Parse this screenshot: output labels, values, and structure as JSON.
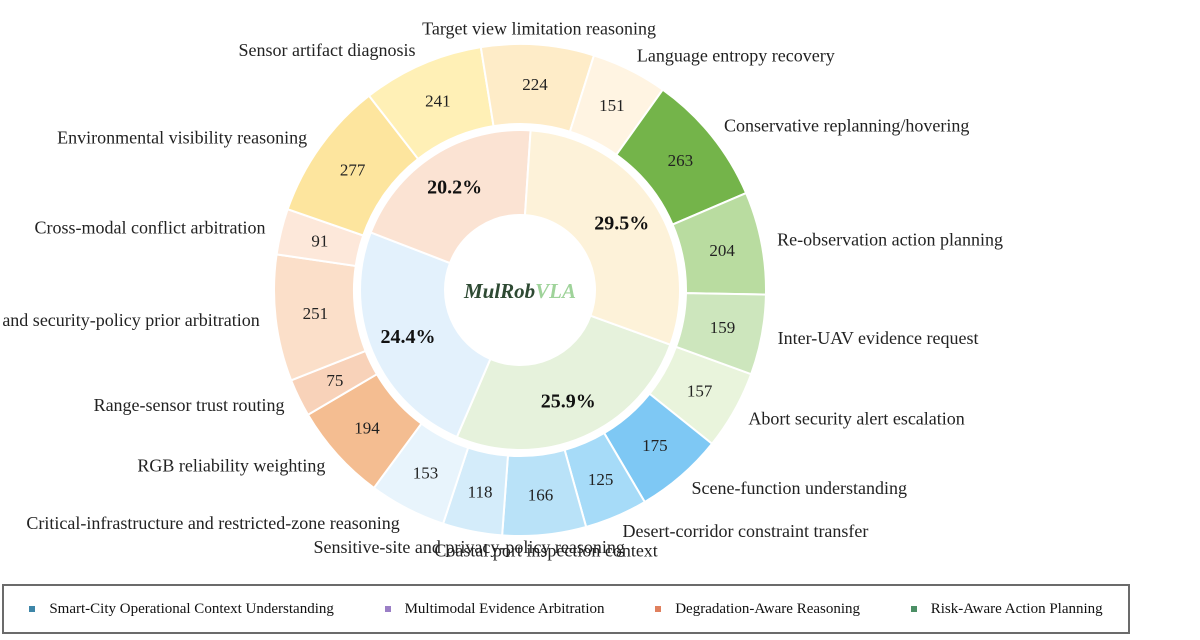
{
  "chart_data": {
    "type": "pie",
    "center_label": {
      "main": "MulRob",
      "accent": "VLA"
    },
    "inner_ring": [
      {
        "label": "25.9%",
        "value": 25.9,
        "color": "#e6f2dc"
      },
      {
        "label": "24.4%",
        "value": 24.4,
        "color": "#e3f1fc"
      },
      {
        "label": "20.2%",
        "value": 20.2,
        "color": "#fbe3d3"
      },
      {
        "label": "29.5%",
        "value": 29.5,
        "color": "#fdf2d9"
      }
    ],
    "outer_ring": [
      {
        "name": "Abort security alert escalation",
        "value": 157,
        "color": "#e9f4dc"
      },
      {
        "name": "Scene-function understanding",
        "value": 175,
        "color": "#7ec8f4"
      },
      {
        "name": "Desert-corridor constraint transfer",
        "value": 125,
        "color": "#a6dbf8"
      },
      {
        "name": "Coastal port inspection context",
        "value": 166,
        "color": "#b9e2f8"
      },
      {
        "name": "Sensitive-site and privacy-policy reasoning",
        "value": 118,
        "color": "#d4ecfa"
      },
      {
        "name": "Critical-infrastructure and restricted-zone reasoning",
        "value": 153,
        "color": "#e8f4fc"
      },
      {
        "name": "RGB reliability weighting",
        "value": 194,
        "color": "#f4bd91"
      },
      {
        "name": "Range-sensor trust routing",
        "value": 75,
        "color": "#f8d2b9"
      },
      {
        "name": "Text and security-policy prior arbitration",
        "value": 251,
        "color": "#fbdfc9"
      },
      {
        "name": "Cross-modal conflict arbitration",
        "value": 91,
        "color": "#fde8da"
      },
      {
        "name": "Environmental visibility reasoning",
        "value": 277,
        "color": "#fde59e"
      },
      {
        "name": "Sensor artifact diagnosis",
        "value": 241,
        "color": "#fff0b6"
      },
      {
        "name": "Target view limitation reasoning",
        "value": 224,
        "color": "#feecc8"
      },
      {
        "name": "Language entropy recovery",
        "value": 151,
        "color": "#fff4e2"
      },
      {
        "name": "Conservative replanning/hovering",
        "value": 263,
        "color": "#74b44a"
      },
      {
        "name": "Re-observation action planning",
        "value": 204,
        "color": "#b9dca0"
      },
      {
        "name": "Inter-UAV evidence request",
        "value": 159,
        "color": "#cde6bd"
      }
    ],
    "legend": [
      {
        "name": "Smart-City Operational Context Understanding",
        "color": "#3e86a8"
      },
      {
        "name": "Multimodal Evidence Arbitration",
        "color": "#9b7fc6"
      },
      {
        "name": "Degradation-Aware Reasoning",
        "color": "#e0805e"
      },
      {
        "name": "Risk-Aware Action Planning",
        "color": "#4c8f65"
      }
    ]
  }
}
